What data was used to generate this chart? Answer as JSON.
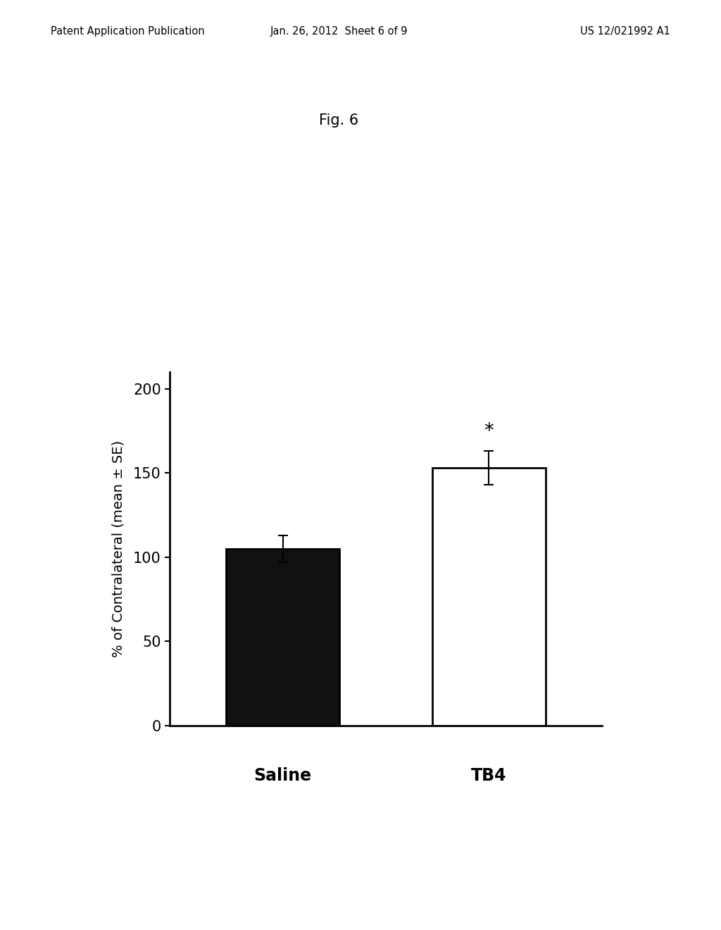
{
  "categories": [
    "Saline",
    "TB4"
  ],
  "values": [
    105,
    153
  ],
  "errors": [
    8,
    10
  ],
  "bar_colors": [
    "#111111",
    "#ffffff"
  ],
  "bar_edgecolors": [
    "#000000",
    "#000000"
  ],
  "ylabel": "% of Contralateral (mean ± SE)",
  "ylim": [
    0,
    210
  ],
  "yticks": [
    0,
    50,
    100,
    150,
    200
  ],
  "title": "Fig. 6",
  "asterisk_label": "*",
  "header_left": "Patent Application Publication",
  "header_center": "Jan. 26, 2012  Sheet 6 of 9",
  "header_right": "US 12/021992 A1",
  "background_color": "#ffffff",
  "bar_width": 0.55,
  "error_capsize": 5,
  "error_linewidth": 1.5,
  "ylabel_fontsize": 14,
  "tick_fontsize": 15,
  "xlabel_fontsize": 17,
  "asterisk_fontsize": 20,
  "title_fontsize": 15,
  "header_fontsize": 10.5
}
